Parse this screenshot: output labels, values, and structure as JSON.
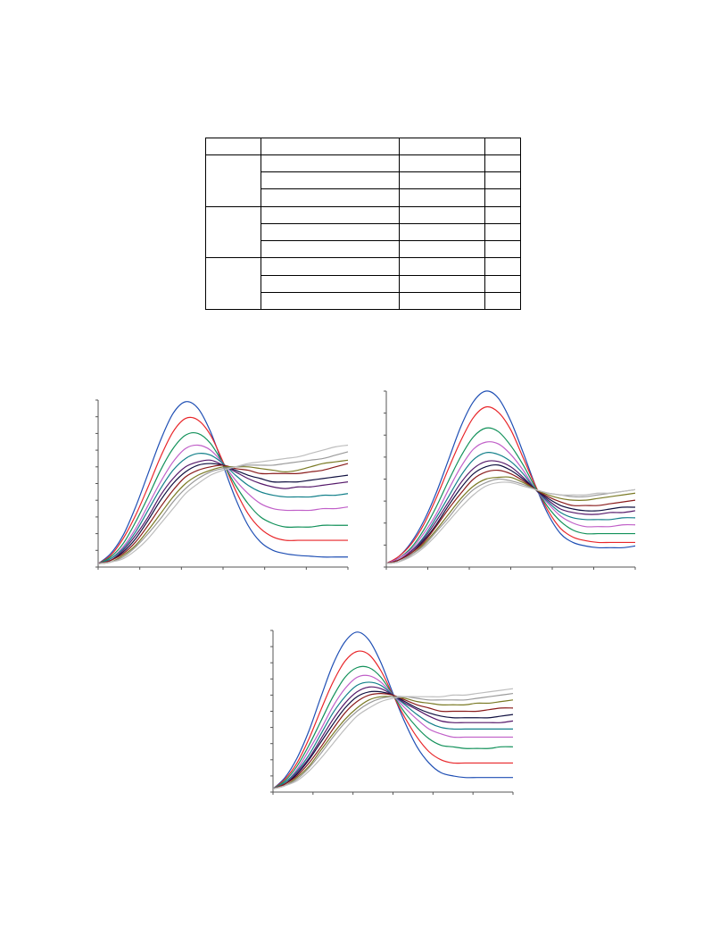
{
  "table": {
    "columns": [
      "",
      "",
      "",
      ""
    ],
    "groups": [
      {
        "label": "",
        "rows": [
          [
            "",
            "",
            ""
          ],
          [
            "",
            "",
            ""
          ],
          [
            "",
            "",
            ""
          ]
        ]
      },
      {
        "label": "",
        "rows": [
          [
            "",
            "",
            ""
          ],
          [
            "",
            "",
            ""
          ],
          [
            "",
            "",
            ""
          ]
        ]
      },
      {
        "label": "",
        "rows": [
          [
            "",
            "",
            ""
          ],
          [
            "",
            "",
            ""
          ],
          [
            "",
            "",
            ""
          ]
        ]
      }
    ]
  },
  "series_colors": [
    "#1f4fb4",
    "#e8262a",
    "#12915a",
    "#c05fc8",
    "#13808a",
    "#55196a",
    "#101040",
    "#8a1c1c",
    "#7a7a25",
    "#9a9a9a",
    "#bdbdbd"
  ],
  "chart_data": [
    {
      "type": "line",
      "title": "",
      "xlabel": "",
      "ylabel": "",
      "xlim": [
        0,
        1
      ],
      "ylim": [
        0,
        1
      ],
      "grid": false,
      "x": [
        0,
        0.05,
        0.1,
        0.15,
        0.2,
        0.25,
        0.3,
        0.35,
        0.4,
        0.45,
        0.5,
        0.55,
        0.6,
        0.65,
        0.7,
        0.75,
        0.8,
        0.85,
        0.9,
        0.95,
        1
      ],
      "series": [
        {
          "values": [
            0.02,
            0.08,
            0.19,
            0.36,
            0.56,
            0.76,
            0.92,
            0.99,
            0.95,
            0.81,
            0.61,
            0.41,
            0.25,
            0.15,
            0.1,
            0.08,
            0.07,
            0.065,
            0.06,
            0.06,
            0.06
          ]
        },
        {
          "values": [
            0.02,
            0.07,
            0.17,
            0.31,
            0.48,
            0.66,
            0.81,
            0.89,
            0.88,
            0.79,
            0.63,
            0.46,
            0.32,
            0.23,
            0.18,
            0.16,
            0.16,
            0.16,
            0.16,
            0.16,
            0.16
          ]
        },
        {
          "values": [
            0.02,
            0.06,
            0.14,
            0.27,
            0.42,
            0.58,
            0.71,
            0.79,
            0.8,
            0.74,
            0.62,
            0.49,
            0.38,
            0.3,
            0.26,
            0.24,
            0.24,
            0.24,
            0.25,
            0.25,
            0.25
          ]
        },
        {
          "values": [
            0.02,
            0.05,
            0.12,
            0.23,
            0.37,
            0.51,
            0.63,
            0.71,
            0.73,
            0.7,
            0.62,
            0.52,
            0.44,
            0.38,
            0.35,
            0.34,
            0.34,
            0.34,
            0.35,
            0.35,
            0.36
          ]
        },
        {
          "values": [
            0.02,
            0.05,
            0.11,
            0.21,
            0.34,
            0.47,
            0.58,
            0.65,
            0.68,
            0.67,
            0.62,
            0.55,
            0.49,
            0.45,
            0.43,
            0.42,
            0.42,
            0.42,
            0.43,
            0.43,
            0.44
          ]
        },
        {
          "values": [
            0.02,
            0.04,
            0.1,
            0.19,
            0.3,
            0.43,
            0.53,
            0.6,
            0.63,
            0.64,
            0.61,
            0.57,
            0.53,
            0.5,
            0.48,
            0.47,
            0.48,
            0.48,
            0.49,
            0.5,
            0.51
          ]
        },
        {
          "values": [
            0.02,
            0.04,
            0.09,
            0.17,
            0.28,
            0.4,
            0.5,
            0.57,
            0.61,
            0.62,
            0.61,
            0.58,
            0.55,
            0.53,
            0.51,
            0.51,
            0.51,
            0.52,
            0.53,
            0.54,
            0.55
          ]
        },
        {
          "values": [
            0.02,
            0.04,
            0.08,
            0.15,
            0.25,
            0.36,
            0.46,
            0.54,
            0.58,
            0.6,
            0.61,
            0.59,
            0.58,
            0.56,
            0.56,
            0.56,
            0.56,
            0.57,
            0.58,
            0.6,
            0.62
          ]
        },
        {
          "values": [
            0.02,
            0.03,
            0.07,
            0.13,
            0.22,
            0.32,
            0.42,
            0.5,
            0.55,
            0.58,
            0.6,
            0.6,
            0.6,
            0.59,
            0.58,
            0.57,
            0.58,
            0.6,
            0.62,
            0.63,
            0.64
          ]
        },
        {
          "values": [
            0.02,
            0.03,
            0.06,
            0.12,
            0.2,
            0.29,
            0.39,
            0.47,
            0.53,
            0.57,
            0.59,
            0.6,
            0.61,
            0.61,
            0.61,
            0.62,
            0.63,
            0.64,
            0.65,
            0.67,
            0.69
          ]
        },
        {
          "values": [
            0.02,
            0.03,
            0.05,
            0.1,
            0.17,
            0.26,
            0.35,
            0.44,
            0.5,
            0.55,
            0.58,
            0.6,
            0.62,
            0.63,
            0.64,
            0.65,
            0.66,
            0.68,
            0.7,
            0.72,
            0.73
          ]
        }
      ]
    },
    {
      "type": "line",
      "title": "",
      "xlabel": "",
      "ylabel": "",
      "xlim": [
        0,
        1
      ],
      "ylim": [
        0,
        1
      ],
      "grid": false,
      "x": [
        0,
        0.05,
        0.1,
        0.15,
        0.2,
        0.25,
        0.3,
        0.35,
        0.4,
        0.45,
        0.5,
        0.55,
        0.6,
        0.65,
        0.7,
        0.75,
        0.8,
        0.85,
        0.9,
        0.95,
        1
      ],
      "series": [
        {
          "values": [
            0.02,
            0.06,
            0.14,
            0.26,
            0.42,
            0.61,
            0.8,
            0.94,
            1.0,
            0.96,
            0.83,
            0.65,
            0.46,
            0.3,
            0.19,
            0.14,
            0.12,
            0.11,
            0.11,
            0.11,
            0.12
          ]
        },
        {
          "values": [
            0.02,
            0.06,
            0.13,
            0.24,
            0.39,
            0.56,
            0.72,
            0.85,
            0.91,
            0.88,
            0.78,
            0.62,
            0.46,
            0.32,
            0.22,
            0.17,
            0.15,
            0.14,
            0.14,
            0.14,
            0.14
          ]
        },
        {
          "values": [
            0.02,
            0.05,
            0.11,
            0.21,
            0.34,
            0.49,
            0.63,
            0.74,
            0.79,
            0.77,
            0.69,
            0.58,
            0.45,
            0.34,
            0.26,
            0.21,
            0.19,
            0.19,
            0.19,
            0.19,
            0.19
          ]
        },
        {
          "values": [
            0.02,
            0.05,
            0.1,
            0.19,
            0.3,
            0.44,
            0.57,
            0.67,
            0.71,
            0.7,
            0.64,
            0.55,
            0.44,
            0.36,
            0.29,
            0.25,
            0.23,
            0.23,
            0.23,
            0.24,
            0.24
          ]
        },
        {
          "values": [
            0.02,
            0.04,
            0.09,
            0.17,
            0.28,
            0.4,
            0.52,
            0.61,
            0.65,
            0.64,
            0.6,
            0.53,
            0.44,
            0.37,
            0.31,
            0.28,
            0.27,
            0.27,
            0.27,
            0.28,
            0.28
          ]
        },
        {
          "values": [
            0.02,
            0.04,
            0.09,
            0.16,
            0.26,
            0.37,
            0.48,
            0.56,
            0.6,
            0.6,
            0.57,
            0.51,
            0.44,
            0.38,
            0.33,
            0.31,
            0.3,
            0.3,
            0.31,
            0.31,
            0.32
          ]
        },
        {
          "values": [
            0.02,
            0.04,
            0.08,
            0.15,
            0.24,
            0.35,
            0.45,
            0.53,
            0.57,
            0.58,
            0.55,
            0.5,
            0.44,
            0.39,
            0.35,
            0.33,
            0.32,
            0.32,
            0.33,
            0.34,
            0.34
          ]
        },
        {
          "values": [
            0.02,
            0.04,
            0.08,
            0.14,
            0.23,
            0.33,
            0.42,
            0.5,
            0.54,
            0.55,
            0.53,
            0.49,
            0.44,
            0.4,
            0.37,
            0.35,
            0.35,
            0.35,
            0.36,
            0.37,
            0.38
          ]
        },
        {
          "values": [
            0.02,
            0.03,
            0.07,
            0.13,
            0.21,
            0.3,
            0.39,
            0.46,
            0.5,
            0.51,
            0.51,
            0.48,
            0.44,
            0.41,
            0.39,
            0.38,
            0.38,
            0.39,
            0.4,
            0.41,
            0.42
          ]
        },
        {
          "values": [
            0.02,
            0.03,
            0.07,
            0.12,
            0.2,
            0.28,
            0.37,
            0.44,
            0.48,
            0.5,
            0.49,
            0.47,
            0.44,
            0.42,
            0.41,
            0.4,
            0.4,
            0.41,
            0.42,
            0.43,
            0.44
          ]
        },
        {
          "values": [
            0.02,
            0.03,
            0.06,
            0.11,
            0.18,
            0.26,
            0.34,
            0.41,
            0.46,
            0.48,
            0.48,
            0.46,
            0.44,
            0.42,
            0.41,
            0.41,
            0.41,
            0.42,
            0.42,
            0.43,
            0.44
          ]
        }
      ]
    },
    {
      "type": "line",
      "title": "",
      "xlabel": "",
      "ylabel": "",
      "xlim": [
        0,
        1
      ],
      "ylim": [
        0,
        1
      ],
      "grid": false,
      "x": [
        0,
        0.05,
        0.1,
        0.15,
        0.2,
        0.25,
        0.3,
        0.35,
        0.4,
        0.45,
        0.5,
        0.55,
        0.6,
        0.65,
        0.7,
        0.75,
        0.8,
        0.85,
        0.9,
        0.95,
        1
      ],
      "series": [
        {
          "values": [
            0.02,
            0.09,
            0.21,
            0.38,
            0.59,
            0.79,
            0.93,
            0.99,
            0.94,
            0.8,
            0.61,
            0.43,
            0.28,
            0.18,
            0.12,
            0.1,
            0.09,
            0.09,
            0.09,
            0.09,
            0.09
          ]
        },
        {
          "values": [
            0.02,
            0.08,
            0.18,
            0.33,
            0.51,
            0.68,
            0.81,
            0.87,
            0.85,
            0.75,
            0.6,
            0.46,
            0.34,
            0.25,
            0.2,
            0.18,
            0.18,
            0.18,
            0.18,
            0.18,
            0.18
          ]
        },
        {
          "values": [
            0.02,
            0.07,
            0.16,
            0.29,
            0.44,
            0.59,
            0.71,
            0.77,
            0.77,
            0.71,
            0.6,
            0.49,
            0.4,
            0.33,
            0.29,
            0.28,
            0.27,
            0.27,
            0.27,
            0.28,
            0.28
          ]
        },
        {
          "values": [
            0.02,
            0.06,
            0.14,
            0.26,
            0.39,
            0.53,
            0.64,
            0.71,
            0.72,
            0.68,
            0.6,
            0.52,
            0.45,
            0.39,
            0.36,
            0.34,
            0.34,
            0.34,
            0.34,
            0.34,
            0.34
          ]
        },
        {
          "values": [
            0.02,
            0.06,
            0.13,
            0.23,
            0.36,
            0.49,
            0.59,
            0.66,
            0.68,
            0.66,
            0.6,
            0.54,
            0.48,
            0.43,
            0.4,
            0.39,
            0.39,
            0.39,
            0.39,
            0.39,
            0.39
          ]
        },
        {
          "values": [
            0.02,
            0.05,
            0.12,
            0.21,
            0.33,
            0.45,
            0.55,
            0.62,
            0.65,
            0.64,
            0.6,
            0.55,
            0.51,
            0.47,
            0.44,
            0.43,
            0.43,
            0.43,
            0.43,
            0.43,
            0.44
          ]
        },
        {
          "values": [
            0.02,
            0.05,
            0.11,
            0.2,
            0.31,
            0.42,
            0.52,
            0.59,
            0.62,
            0.62,
            0.6,
            0.56,
            0.52,
            0.49,
            0.47,
            0.46,
            0.46,
            0.46,
            0.46,
            0.47,
            0.48
          ]
        },
        {
          "values": [
            0.02,
            0.05,
            0.1,
            0.18,
            0.28,
            0.39,
            0.49,
            0.56,
            0.6,
            0.61,
            0.6,
            0.57,
            0.54,
            0.52,
            0.5,
            0.5,
            0.5,
            0.5,
            0.51,
            0.52,
            0.52
          ]
        },
        {
          "values": [
            0.02,
            0.04,
            0.09,
            0.16,
            0.26,
            0.36,
            0.45,
            0.52,
            0.57,
            0.59,
            0.59,
            0.58,
            0.56,
            0.55,
            0.54,
            0.54,
            0.54,
            0.55,
            0.55,
            0.56,
            0.57
          ]
        },
        {
          "values": [
            0.02,
            0.04,
            0.08,
            0.15,
            0.24,
            0.34,
            0.43,
            0.5,
            0.55,
            0.58,
            0.59,
            0.59,
            0.58,
            0.57,
            0.57,
            0.57,
            0.57,
            0.58,
            0.59,
            0.6,
            0.61
          ]
        },
        {
          "values": [
            0.02,
            0.04,
            0.07,
            0.13,
            0.21,
            0.3,
            0.39,
            0.47,
            0.52,
            0.56,
            0.58,
            0.59,
            0.59,
            0.59,
            0.59,
            0.6,
            0.6,
            0.61,
            0.62,
            0.63,
            0.64
          ]
        }
      ]
    }
  ]
}
